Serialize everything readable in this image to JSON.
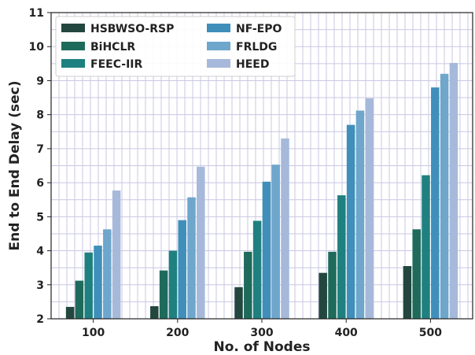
{
  "chart_data": {
    "type": "bar",
    "xlabel": "No. of Nodes",
    "ylabel": "End to End Delay (sec)",
    "categories": [
      "100",
      "200",
      "300",
      "400",
      "500"
    ],
    "ylim": [
      2,
      11
    ],
    "yticks": [
      2,
      3,
      4,
      5,
      6,
      7,
      8,
      9,
      10,
      11
    ],
    "grid": true,
    "legend_position": "top-left",
    "series": [
      {
        "name": "HSBWSO-RSP",
        "color": "#23473f",
        "values": [
          2.35,
          2.37,
          2.93,
          3.35,
          3.55
        ]
      },
      {
        "name": "BiHCLR",
        "color": "#1e6b5c",
        "values": [
          3.12,
          3.42,
          3.97,
          3.97,
          4.63
        ]
      },
      {
        "name": "FEEC-IIR",
        "color": "#1f8080",
        "values": [
          3.95,
          4.0,
          4.88,
          5.63,
          6.22
        ]
      },
      {
        "name": "NF-EPO",
        "color": "#3f8fba",
        "values": [
          4.15,
          4.9,
          6.03,
          7.7,
          8.8
        ]
      },
      {
        "name": "FRLDG",
        "color": "#6ea6cc",
        "values": [
          4.63,
          5.57,
          6.53,
          8.12,
          9.2
        ]
      },
      {
        "name": "HEED",
        "color": "#a6b9da",
        "values": [
          5.77,
          6.47,
          7.3,
          8.48,
          9.52
        ]
      }
    ]
  }
}
